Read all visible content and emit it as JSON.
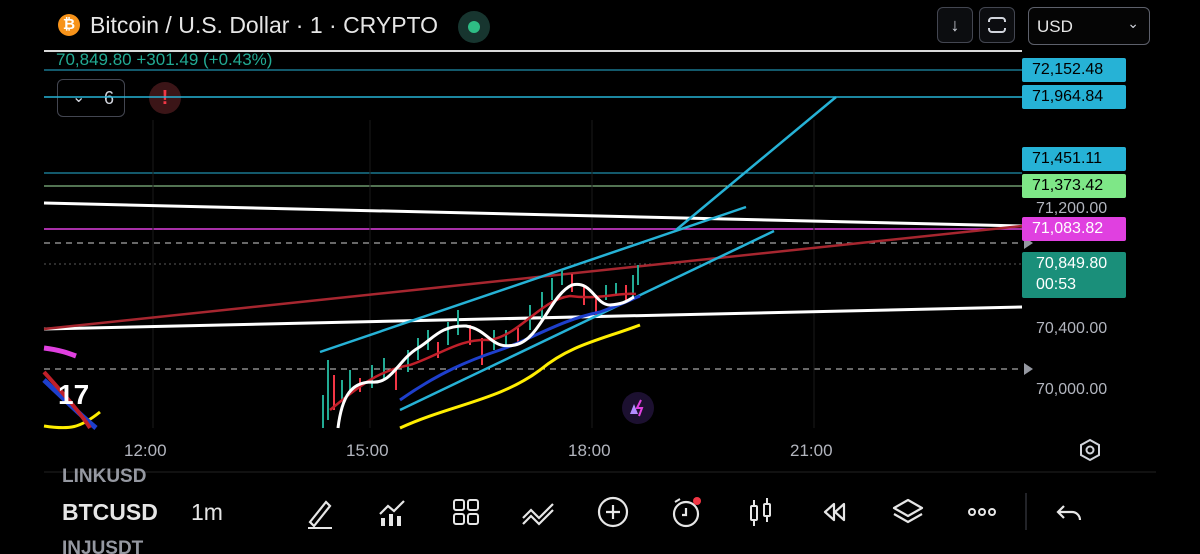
{
  "header": {
    "symbol_icon": "bitcoin-icon",
    "title": "Bitcoin / U.S. Dollar · 1 · CRYPTO",
    "download_icon": "arrow-down-icon",
    "fullscreen_icon": "fullscreen-icon",
    "currency": "USD"
  },
  "quote": {
    "text": "70,849.80  +301.49 (+0.43%)",
    "color": "#22ab94"
  },
  "indicators": {
    "count": "6",
    "warning_icon": "exclamation-icon"
  },
  "price_scale": {
    "labels": [
      {
        "text": "72,152.48",
        "color": "#26b2d6"
      },
      {
        "text": "71,964.84",
        "color": "#26b2d6"
      },
      {
        "text": "71,451.11",
        "color": "#26b2d6"
      },
      {
        "text": "71,373.42",
        "color": "#7ee787"
      },
      {
        "text": "71,083.82",
        "color": "#e040e0"
      }
    ],
    "current_price": "70,849.80",
    "countdown": "00:53",
    "ticks": [
      "71,200.00",
      "70,400.00",
      "70,000.00"
    ],
    "settings_icon": "settings-icon"
  },
  "time_axis": [
    "12:00",
    "15:00",
    "18:00",
    "21:00"
  ],
  "watchlist_ghost": [
    "LINKUSD",
    "INJUSDT"
  ],
  "bottom_bar": {
    "symbol": "BTCUSD",
    "interval": "1m",
    "tools": [
      "draw-icon",
      "chart-type-icon",
      "grid-icon",
      "trend-icon",
      "add-icon",
      "alert-icon",
      "candles-icon",
      "replay-icon",
      "layers-icon",
      "more-icon",
      "undo-icon"
    ]
  },
  "colors": {
    "background": "#000000",
    "positive": "#22ab94",
    "cyan": "#26b2d6",
    "magenta": "#e040e0"
  }
}
